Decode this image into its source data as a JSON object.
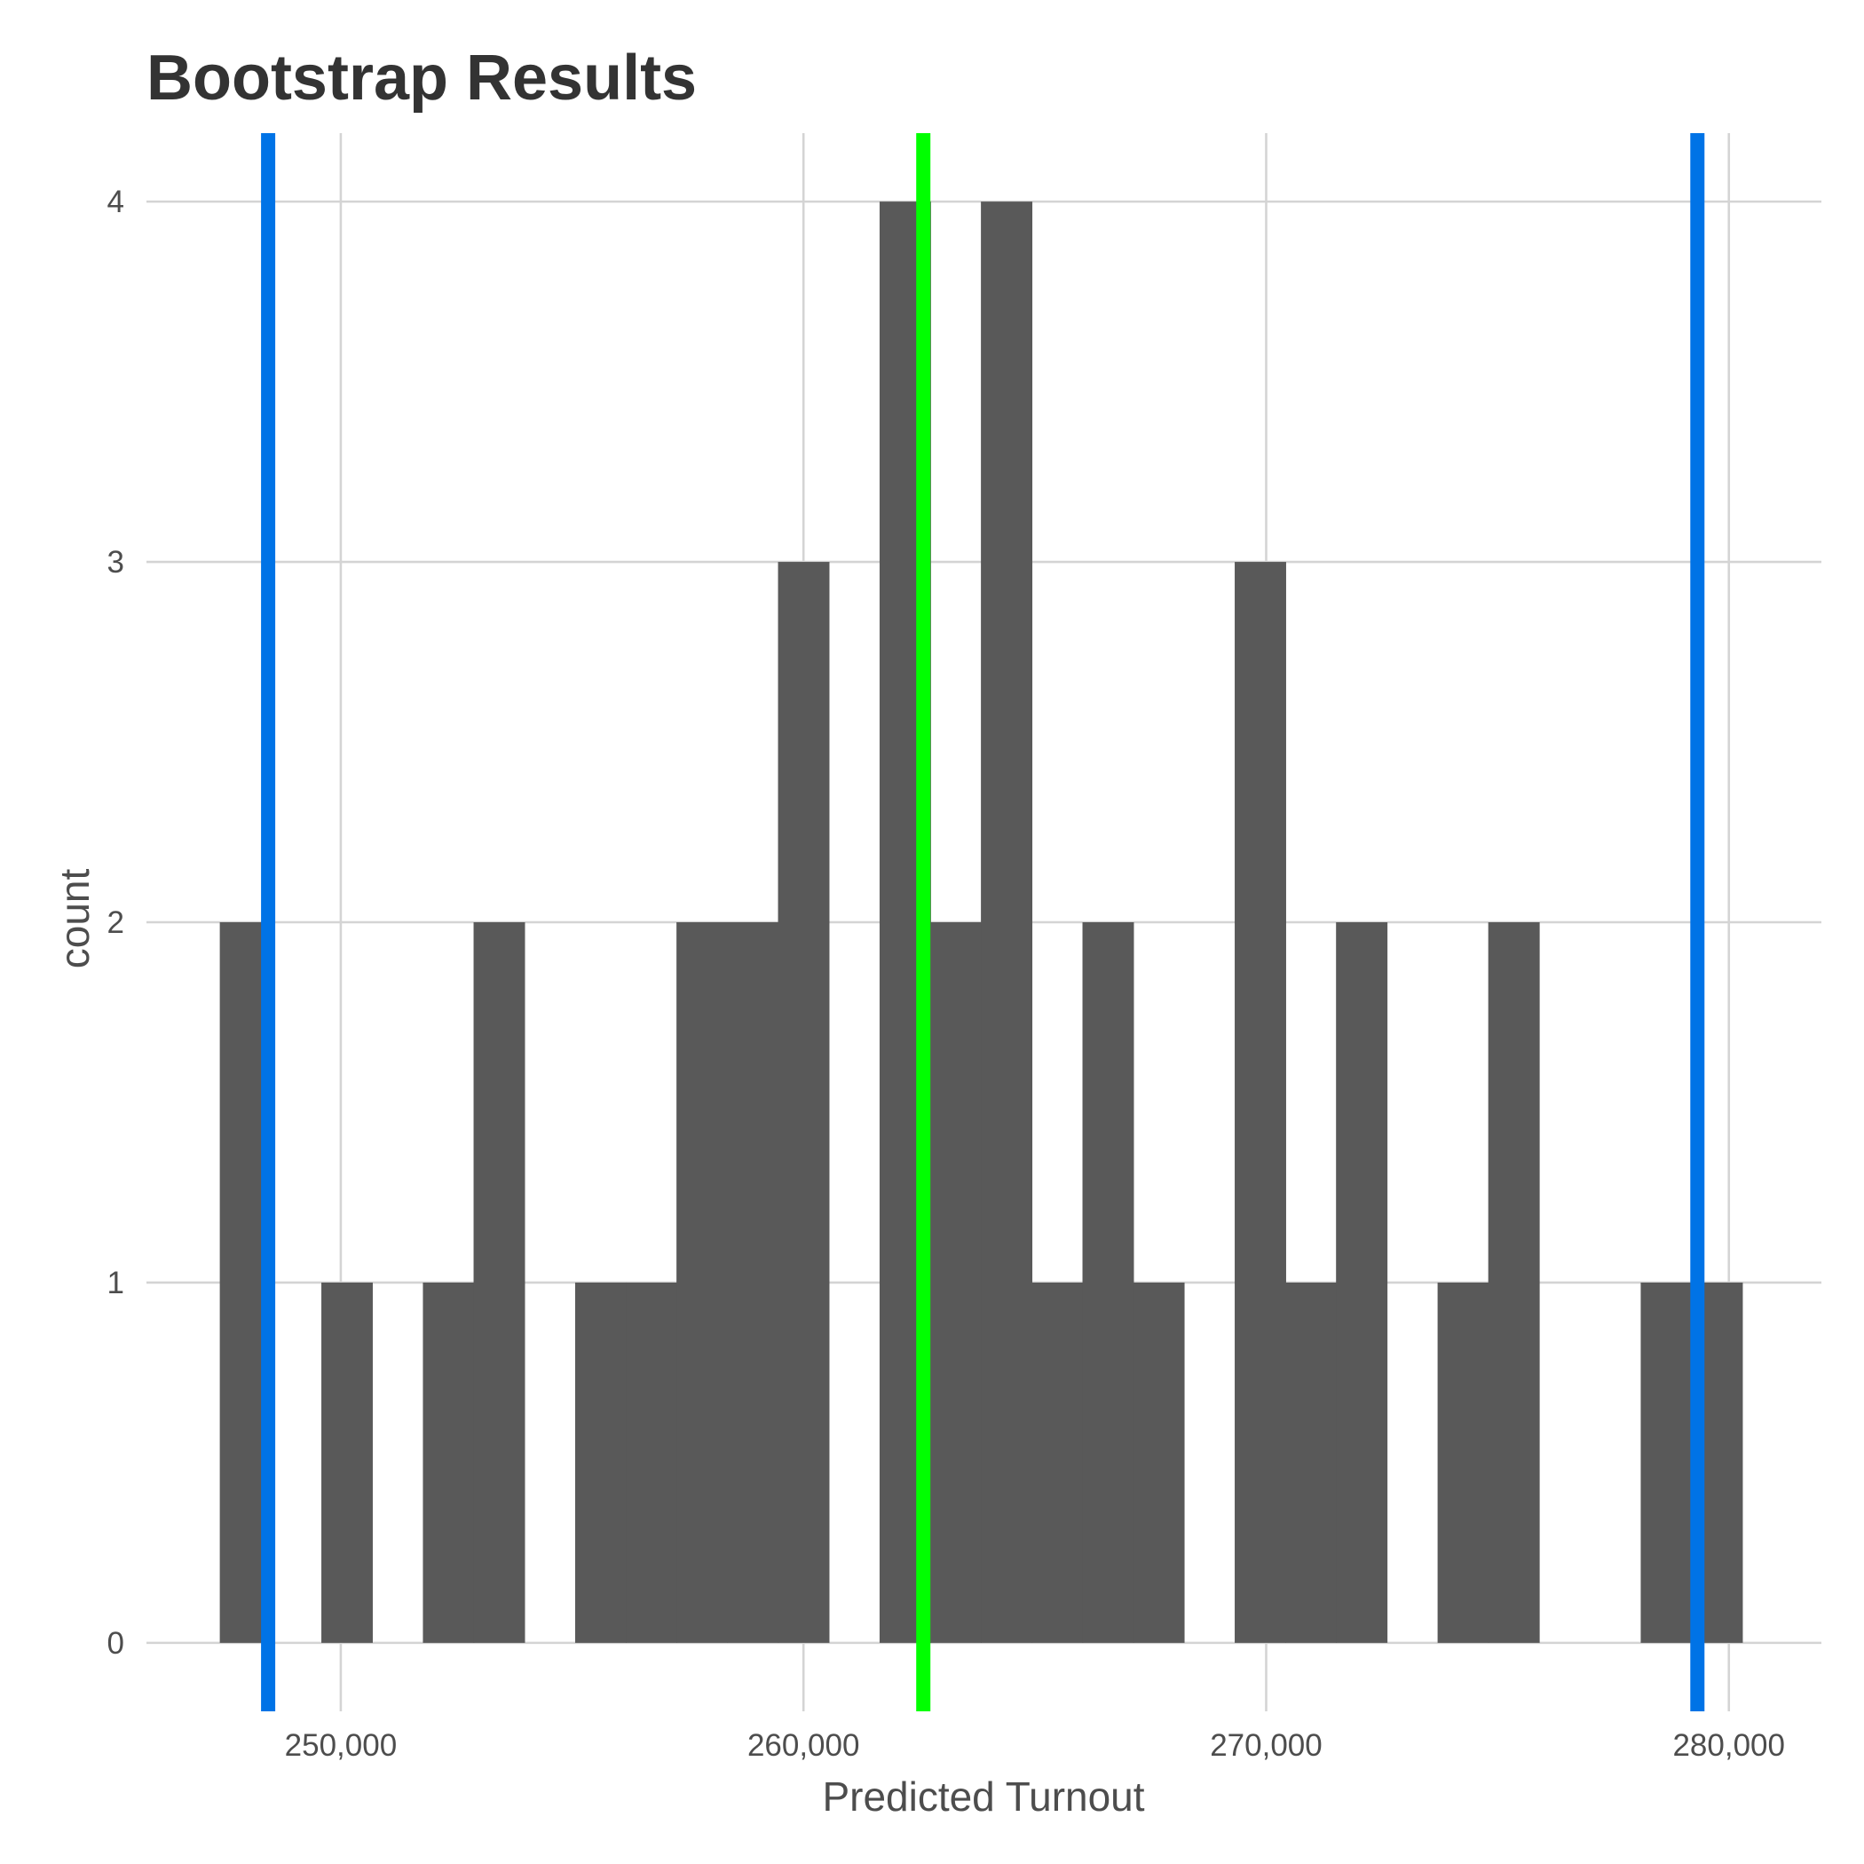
{
  "chart_data": {
    "type": "bar",
    "title": "Bootstrap Results",
    "xlabel": "Predicted Turnout",
    "ylabel": "count",
    "xlim": [
      245800,
      282000
    ],
    "ylim": [
      -0.19,
      4.19
    ],
    "x_ticks": [
      250000,
      260000,
      270000,
      280000
    ],
    "x_tick_labels": [
      "250,000",
      "260,000",
      "270,000",
      "280,000"
    ],
    "y_ticks": [
      0,
      1,
      2,
      3,
      4
    ],
    "y_tick_labels": [
      "0",
      "1",
      "2",
      "3",
      "4"
    ],
    "bin_width": 1100,
    "bins": [
      {
        "x": 247935,
        "count": 2
      },
      {
        "x": 250130,
        "count": 1
      },
      {
        "x": 252325,
        "count": 1
      },
      {
        "x": 253420,
        "count": 2
      },
      {
        "x": 255615,
        "count": 1
      },
      {
        "x": 256710,
        "count": 1
      },
      {
        "x": 257805,
        "count": 2
      },
      {
        "x": 258905,
        "count": 2
      },
      {
        "x": 260000,
        "count": 3
      },
      {
        "x": 262195,
        "count": 4
      },
      {
        "x": 263290,
        "count": 2
      },
      {
        "x": 264385,
        "count": 4
      },
      {
        "x": 265485,
        "count": 1
      },
      {
        "x": 266580,
        "count": 2
      },
      {
        "x": 267675,
        "count": 1
      },
      {
        "x": 269870,
        "count": 3
      },
      {
        "x": 270965,
        "count": 1
      },
      {
        "x": 272060,
        "count": 2
      },
      {
        "x": 274255,
        "count": 1
      },
      {
        "x": 275350,
        "count": 2
      },
      {
        "x": 278645,
        "count": 1
      },
      {
        "x": 279740,
        "count": 1
      }
    ],
    "vlines": [
      {
        "x": 248430,
        "color": "#0073e6"
      },
      {
        "x": 262590,
        "color": "#00ff00"
      },
      {
        "x": 279320,
        "color": "#0073e6"
      }
    ],
    "grid": true,
    "legend": "none"
  }
}
